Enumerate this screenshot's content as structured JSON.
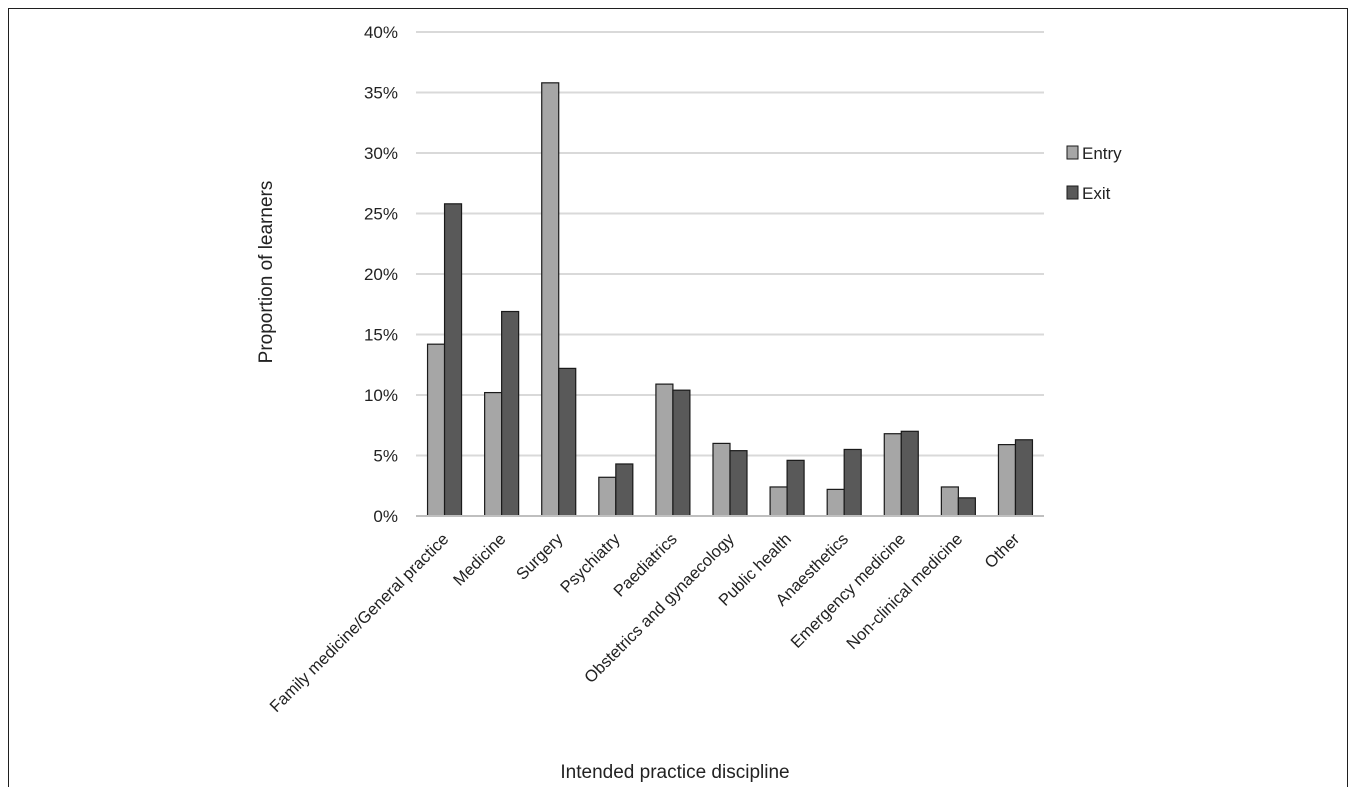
{
  "chart_data": {
    "type": "bar",
    "title": "",
    "xlabel": "Intended practice discipline",
    "ylabel": "Proportion of learners",
    "ylim": [
      0,
      40
    ],
    "yticks": [
      "0%",
      "5%",
      "10%",
      "15%",
      "20%",
      "25%",
      "30%",
      "35%",
      "40%"
    ],
    "grid": true,
    "legend_position": "right",
    "categories": [
      "Family medicine/General practice",
      "Medicine",
      "Surgery",
      "Psychiatry",
      "Paediatrics",
      "Obstetrics and gynaecology",
      "Public health",
      "Anaesthetics",
      "Emergency medicine",
      "Non-clinical medicine",
      "Other"
    ],
    "series": [
      {
        "name": "Entry",
        "color": "#a6a6a6",
        "values": [
          14.2,
          10.2,
          35.8,
          3.2,
          10.9,
          6.0,
          2.4,
          2.2,
          6.8,
          2.4,
          5.9
        ]
      },
      {
        "name": "Exit",
        "color": "#595959",
        "values": [
          25.8,
          16.9,
          12.2,
          4.3,
          10.4,
          5.4,
          4.6,
          5.5,
          7.0,
          1.5,
          6.3
        ]
      }
    ]
  }
}
